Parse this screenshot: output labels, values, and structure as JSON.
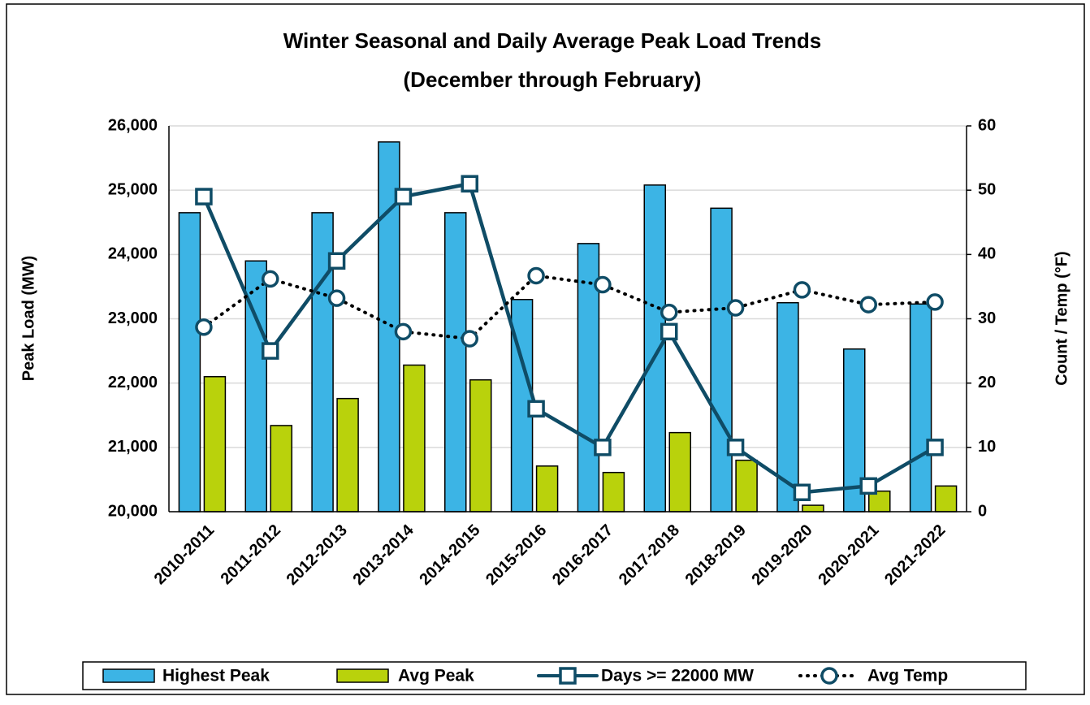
{
  "chart_data": {
    "type": "bar",
    "title": "Winter Seasonal and Daily Average Peak Load Trends",
    "subtitle": "(December through February)",
    "y_label": "Peak Load (MW)",
    "y2_label": "Count / Temp (°F)",
    "categories": [
      "2010-2011",
      "2011-2012",
      "2012-2013",
      "2013-2014",
      "2014-2015",
      "2015-2016",
      "2016-2017",
      "2017-2018",
      "2018-2019",
      "2019-2020",
      "2020-2021",
      "2021-2022"
    ],
    "series": [
      {
        "name": "Highest Peak",
        "type": "bar",
        "color": "#3cb4e5",
        "values": [
          24650,
          23900,
          24650,
          25750,
          24650,
          23300,
          24170,
          25080,
          24720,
          23250,
          22530,
          23230
        ]
      },
      {
        "name": "Avg Peak",
        "type": "bar",
        "color": "#b9d20c",
        "values": [
          22100,
          21340,
          21760,
          22280,
          22050,
          20710,
          20610,
          21230,
          20800,
          20100,
          20320,
          20400
        ]
      },
      {
        "name": "Days >= 22000 MW",
        "type": "line",
        "axis": "y2",
        "color": "#0f4c66",
        "marker": "square",
        "line_style": "solid",
        "values": [
          49,
          25,
          39,
          49,
          51,
          16,
          10,
          28,
          10,
          3,
          4,
          10
        ]
      },
      {
        "name": "Avg Temp",
        "type": "line",
        "axis": "y2",
        "color": "#000000",
        "marker_color": "#0f4c66",
        "marker": "circle",
        "line_style": "dotted",
        "values": [
          28.7,
          36.2,
          33.2,
          28,
          26.9,
          36.7,
          35.3,
          31,
          31.7,
          34.5,
          32.2,
          32.6
        ]
      }
    ],
    "ylim": [
      20000,
      26000
    ],
    "yticks": [
      {
        "value": 20000,
        "label": "20,000"
      },
      {
        "value": 21000,
        "label": "21,000"
      },
      {
        "value": 22000,
        "label": "22,000"
      },
      {
        "value": 23000,
        "label": "23,000"
      },
      {
        "value": 24000,
        "label": "24,000"
      },
      {
        "value": 25000,
        "label": "25,000"
      },
      {
        "value": 26000,
        "label": "26,000"
      }
    ],
    "y2lim": [
      0,
      60
    ],
    "y2ticks": [
      0,
      10,
      20,
      30,
      40,
      50,
      60
    ],
    "grid": true,
    "legend": "bottom"
  }
}
